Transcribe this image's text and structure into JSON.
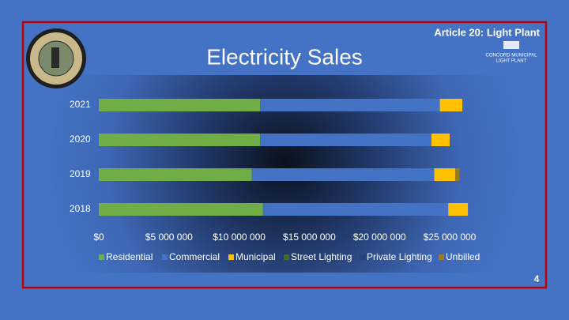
{
  "slide": {
    "header": "Article 20:  Light Plant",
    "logo_lines": [
      "CONCORD MUNICIPAL",
      "LIGHT PLANT"
    ],
    "page_number": "4"
  },
  "chart_data": {
    "type": "stacked_barh",
    "title": "Electricity Sales",
    "categories": [
      "2021",
      "2020",
      "2019",
      "2018"
    ],
    "series": [
      {
        "name": "Residential",
        "color": "#70ad47",
        "values": [
          11500000,
          11500000,
          10900000,
          11700000
        ]
      },
      {
        "name": "Commercial",
        "color": "#4472c4",
        "values": [
          12800000,
          12200000,
          13000000,
          13200000
        ]
      },
      {
        "name": "Municipal",
        "color": "#ffc000",
        "values": [
          1600000,
          1300000,
          1500000,
          1400000
        ]
      },
      {
        "name": "Street Lighting",
        "color": "#43682b",
        "values": [
          0,
          0,
          0,
          0
        ]
      },
      {
        "name": "Private Lighting",
        "color": "#264478",
        "values": [
          0,
          0,
          0,
          0
        ]
      },
      {
        "name": "Unbilled",
        "color": "#9e7a1a",
        "values": [
          0,
          0,
          300000,
          0
        ]
      }
    ],
    "xlim": [
      0,
      25000000
    ],
    "xticks": [
      {
        "value": 0,
        "label": "$0"
      },
      {
        "value": 5000000,
        "label": "$5 000 000"
      },
      {
        "value": 10000000,
        "label": "$10 000 000"
      },
      {
        "value": 15000000,
        "label": "$15 000 000"
      },
      {
        "value": 20000000,
        "label": "$20 000 000"
      },
      {
        "value": 25000000,
        "label": "$25 000 000"
      }
    ],
    "legend": "bottom"
  }
}
